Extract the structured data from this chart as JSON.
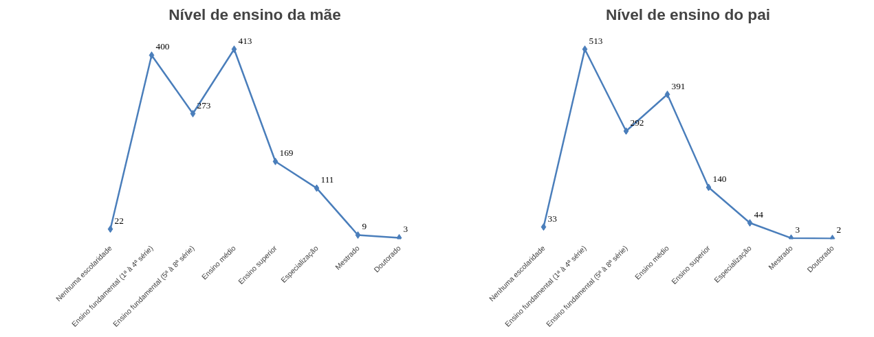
{
  "chart_data": [
    {
      "type": "line",
      "title": "Nível de ensino da mãe",
      "categories": [
        "Nenhuma escolaridade",
        "Ensino fundamental (1ª à 4ª série)",
        "Ensino fundamental (5ª à 8ª série)",
        "Ensino médio",
        "Ensino superior",
        "Especialização",
        "Mestrado",
        "Doutorado"
      ],
      "series": [
        {
          "color": "#4a7ebb",
          "values": [
            22,
            400,
            273,
            413,
            169,
            111,
            9,
            3
          ]
        }
      ],
      "data_labels": true,
      "marker": "diamond",
      "line_style": "solid",
      "grid": false,
      "tick_labels": "x"
    },
    {
      "type": "line",
      "title": "Nível de ensino do pai",
      "categories": [
        "Nenhuma escolaridade",
        "Ensino fundamental (1ª à 4ª série)",
        "Ensino fundamental (5ª à 8ª série)",
        "Ensino médio",
        "Ensino superior",
        "Especialização",
        "Mestrado",
        "Doutorado"
      ],
      "series": [
        {
          "color": "#4a7ebb",
          "values": [
            33,
            513,
            292,
            391,
            140,
            44,
            3,
            2
          ]
        }
      ],
      "data_labels": true,
      "marker": "diamond",
      "line_style": "solid",
      "grid": false,
      "tick_labels": "x"
    }
  ]
}
